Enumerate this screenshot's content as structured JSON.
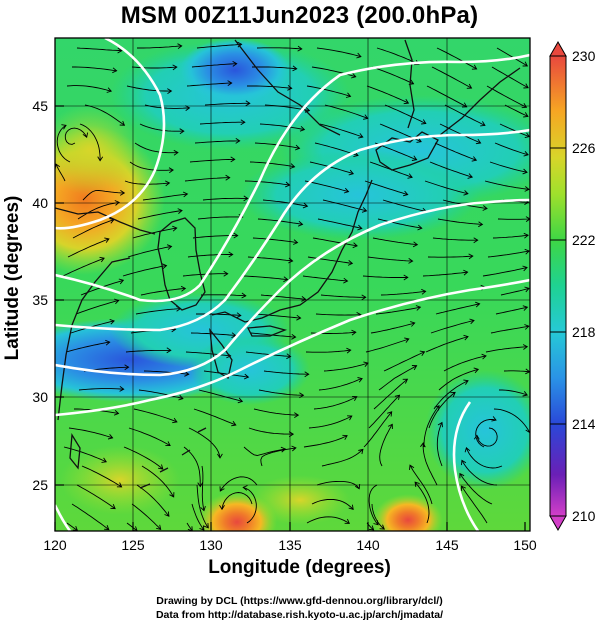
{
  "title": "MSM 00Z11Jun2023 (200.0hPa)",
  "xlabel": "Longitude (degrees)",
  "ylabel": "Latitude  (degrees)",
  "x_ticks": [
    "120",
    "125",
    "130",
    "135",
    "140",
    "145",
    "150"
  ],
  "y_ticks": [
    "25",
    "30",
    "35",
    "40",
    "45"
  ],
  "colorbar": {
    "ticks": [
      "230",
      "226",
      "222",
      "218",
      "214",
      "210"
    ],
    "colors": [
      "#e8483e",
      "#f07a2a",
      "#f6a623",
      "#d8d52a",
      "#9fe02c",
      "#3ed645",
      "#1fd292",
      "#26c9d6",
      "#2a93e6",
      "#2a48d8",
      "#6a1fb6",
      "#d23fc8"
    ]
  },
  "credits": {
    "line1": "Drawing by DCL (https://www.gfd-dennou.org/library/dcl/)",
    "line2": "Data from http://database.rish.kyoto-u.ac.jp/arch/jmadata/"
  },
  "map": {
    "lon_range": [
      120,
      150
    ],
    "lat_range": [
      22.5,
      47.5
    ],
    "field": "temperature (K) with streamlines",
    "features": [
      "high-temp region over Korea/NE China",
      "low-temp band south of Japan",
      "cyclonic vortex near 147E 28N",
      "vortex near 120E 43N",
      "warm spots near 131E 23N and 142E 23N"
    ]
  }
}
